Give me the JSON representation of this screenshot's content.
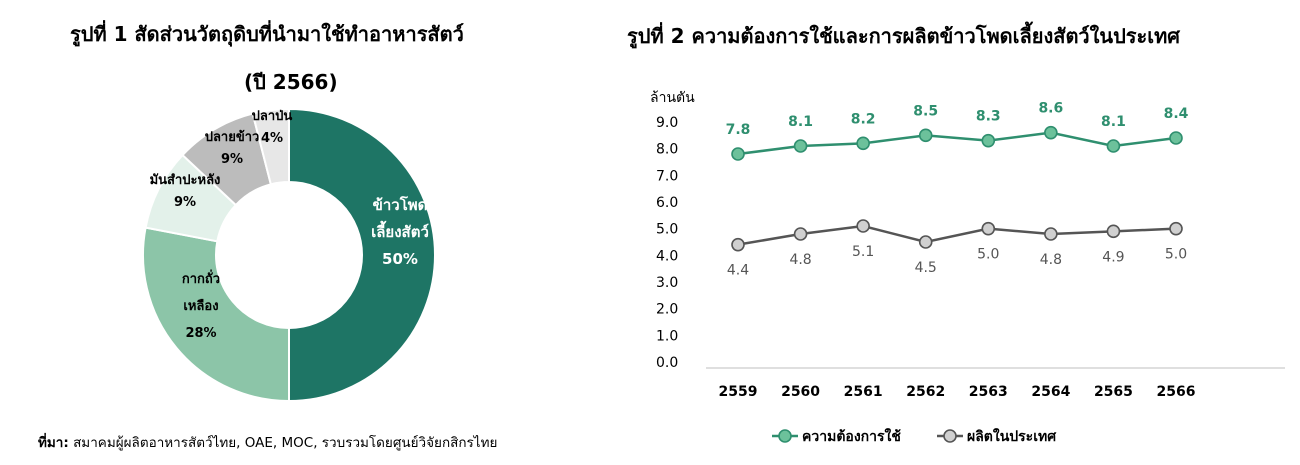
{
  "colors": {
    "dark_green": "#1e7565",
    "mid_green": "#8cc5a8",
    "pale_green": "#e3f1ea",
    "grey": "#bcbcbc",
    "light_grey": "#e7e7e7",
    "line_demand": "#2f8f6f",
    "marker_demand": "#6cc19b",
    "line_production": "#555555",
    "marker_production": "#d0d0d0"
  },
  "figure1": {
    "title_line1": "รูปที่ 1 สัดส่วนวัตถุดิบที่นำมาใช้ทำอาหารสัตว์",
    "title_line2": "(ปี 2566)",
    "chart_data": {
      "type": "pie",
      "donut": true,
      "slices": [
        {
          "label": "ข้าวโพดเลี้ยงสัตว์",
          "lines": [
            "ข้าวโพด",
            "เลี้ยงสัตว์"
          ],
          "value": 50,
          "value_label": "50%",
          "color": "#1e7565"
        },
        {
          "label": "กากถั่วเหลือง",
          "lines": [
            "กากถั่ว",
            "เหลือง"
          ],
          "value": 28,
          "value_label": "28%",
          "color": "#8cc5a8"
        },
        {
          "label": "มันสำปะหลัง",
          "lines": [
            "มันสำปะหลัง"
          ],
          "value": 9,
          "value_label": "9%",
          "color": "#e3f1ea"
        },
        {
          "label": "ปลายข้าว",
          "lines": [
            "ปลายข้าว"
          ],
          "value": 9,
          "value_label": "9%",
          "color": "#bcbcbc"
        },
        {
          "label": "ปลาป่น",
          "lines": [
            "ปลาป่น"
          ],
          "value": 4,
          "value_label": "4%",
          "color": "#e7e7e7"
        }
      ]
    }
  },
  "figure2": {
    "title": "รูปที่ 2 ความต้องการใช้และการผลิตข้าวโพดเลี้ยงสัตว์ในประเทศ",
    "chart_data": {
      "type": "line",
      "ylabel": "ล้านตัน",
      "ylim": [
        0,
        9
      ],
      "yticks": [
        "0.0",
        "1.0",
        "2.0",
        "3.0",
        "4.0",
        "5.0",
        "6.0",
        "7.0",
        "8.0",
        "9.0"
      ],
      "x": [
        "2559",
        "2560",
        "2561",
        "2562",
        "2563",
        "2564",
        "2565",
        "2566"
      ],
      "grid": false,
      "legend_position": "bottom",
      "series": [
        {
          "name": "ความต้องการใช้",
          "values": [
            7.8,
            8.1,
            8.2,
            8.5,
            8.3,
            8.6,
            8.1,
            8.4
          ],
          "labels": [
            "7.8",
            "8.1",
            "8.2",
            "8.5",
            "8.3",
            "8.6",
            "8.1",
            "8.4"
          ],
          "label_position": "above"
        },
        {
          "name": "ผลิตในประเทศ",
          "values": [
            4.4,
            4.8,
            5.1,
            4.5,
            5.0,
            4.8,
            4.9,
            5.0
          ],
          "labels": [
            "4.4",
            "4.8",
            "5.1",
            "4.5",
            "5.0",
            "4.8",
            "4.9",
            "5.0"
          ],
          "label_position": "below"
        }
      ]
    }
  },
  "source": {
    "prefix": "ที่มา:",
    "text": " สมาคมผู้ผลิตอาหารสัตว์ไทย, OAE, MOC, รวบรวมโดยศูนย์วิจัยกสิกรไทย"
  }
}
